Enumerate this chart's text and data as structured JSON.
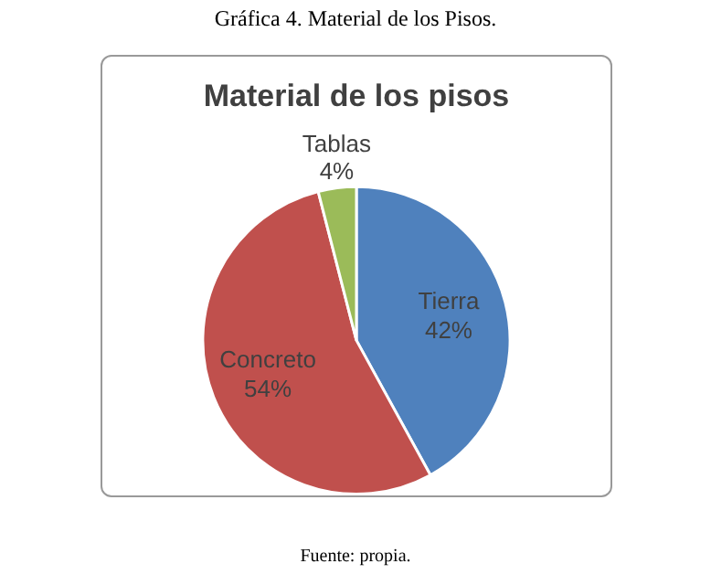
{
  "chart_data": {
    "type": "pie",
    "title": "Material de los pisos",
    "categories": [
      "Tierra",
      "Concreto",
      "Tablas"
    ],
    "values": [
      42,
      54,
      4
    ],
    "colors": [
      "#4f81bd",
      "#c0504d",
      "#9bbb59"
    ],
    "value_labels": [
      "42%",
      "54%",
      "4%"
    ],
    "legend": false,
    "annotations": [
      "Gráfica 4. Material de los Pisos.",
      "Fuente: propia."
    ]
  }
}
